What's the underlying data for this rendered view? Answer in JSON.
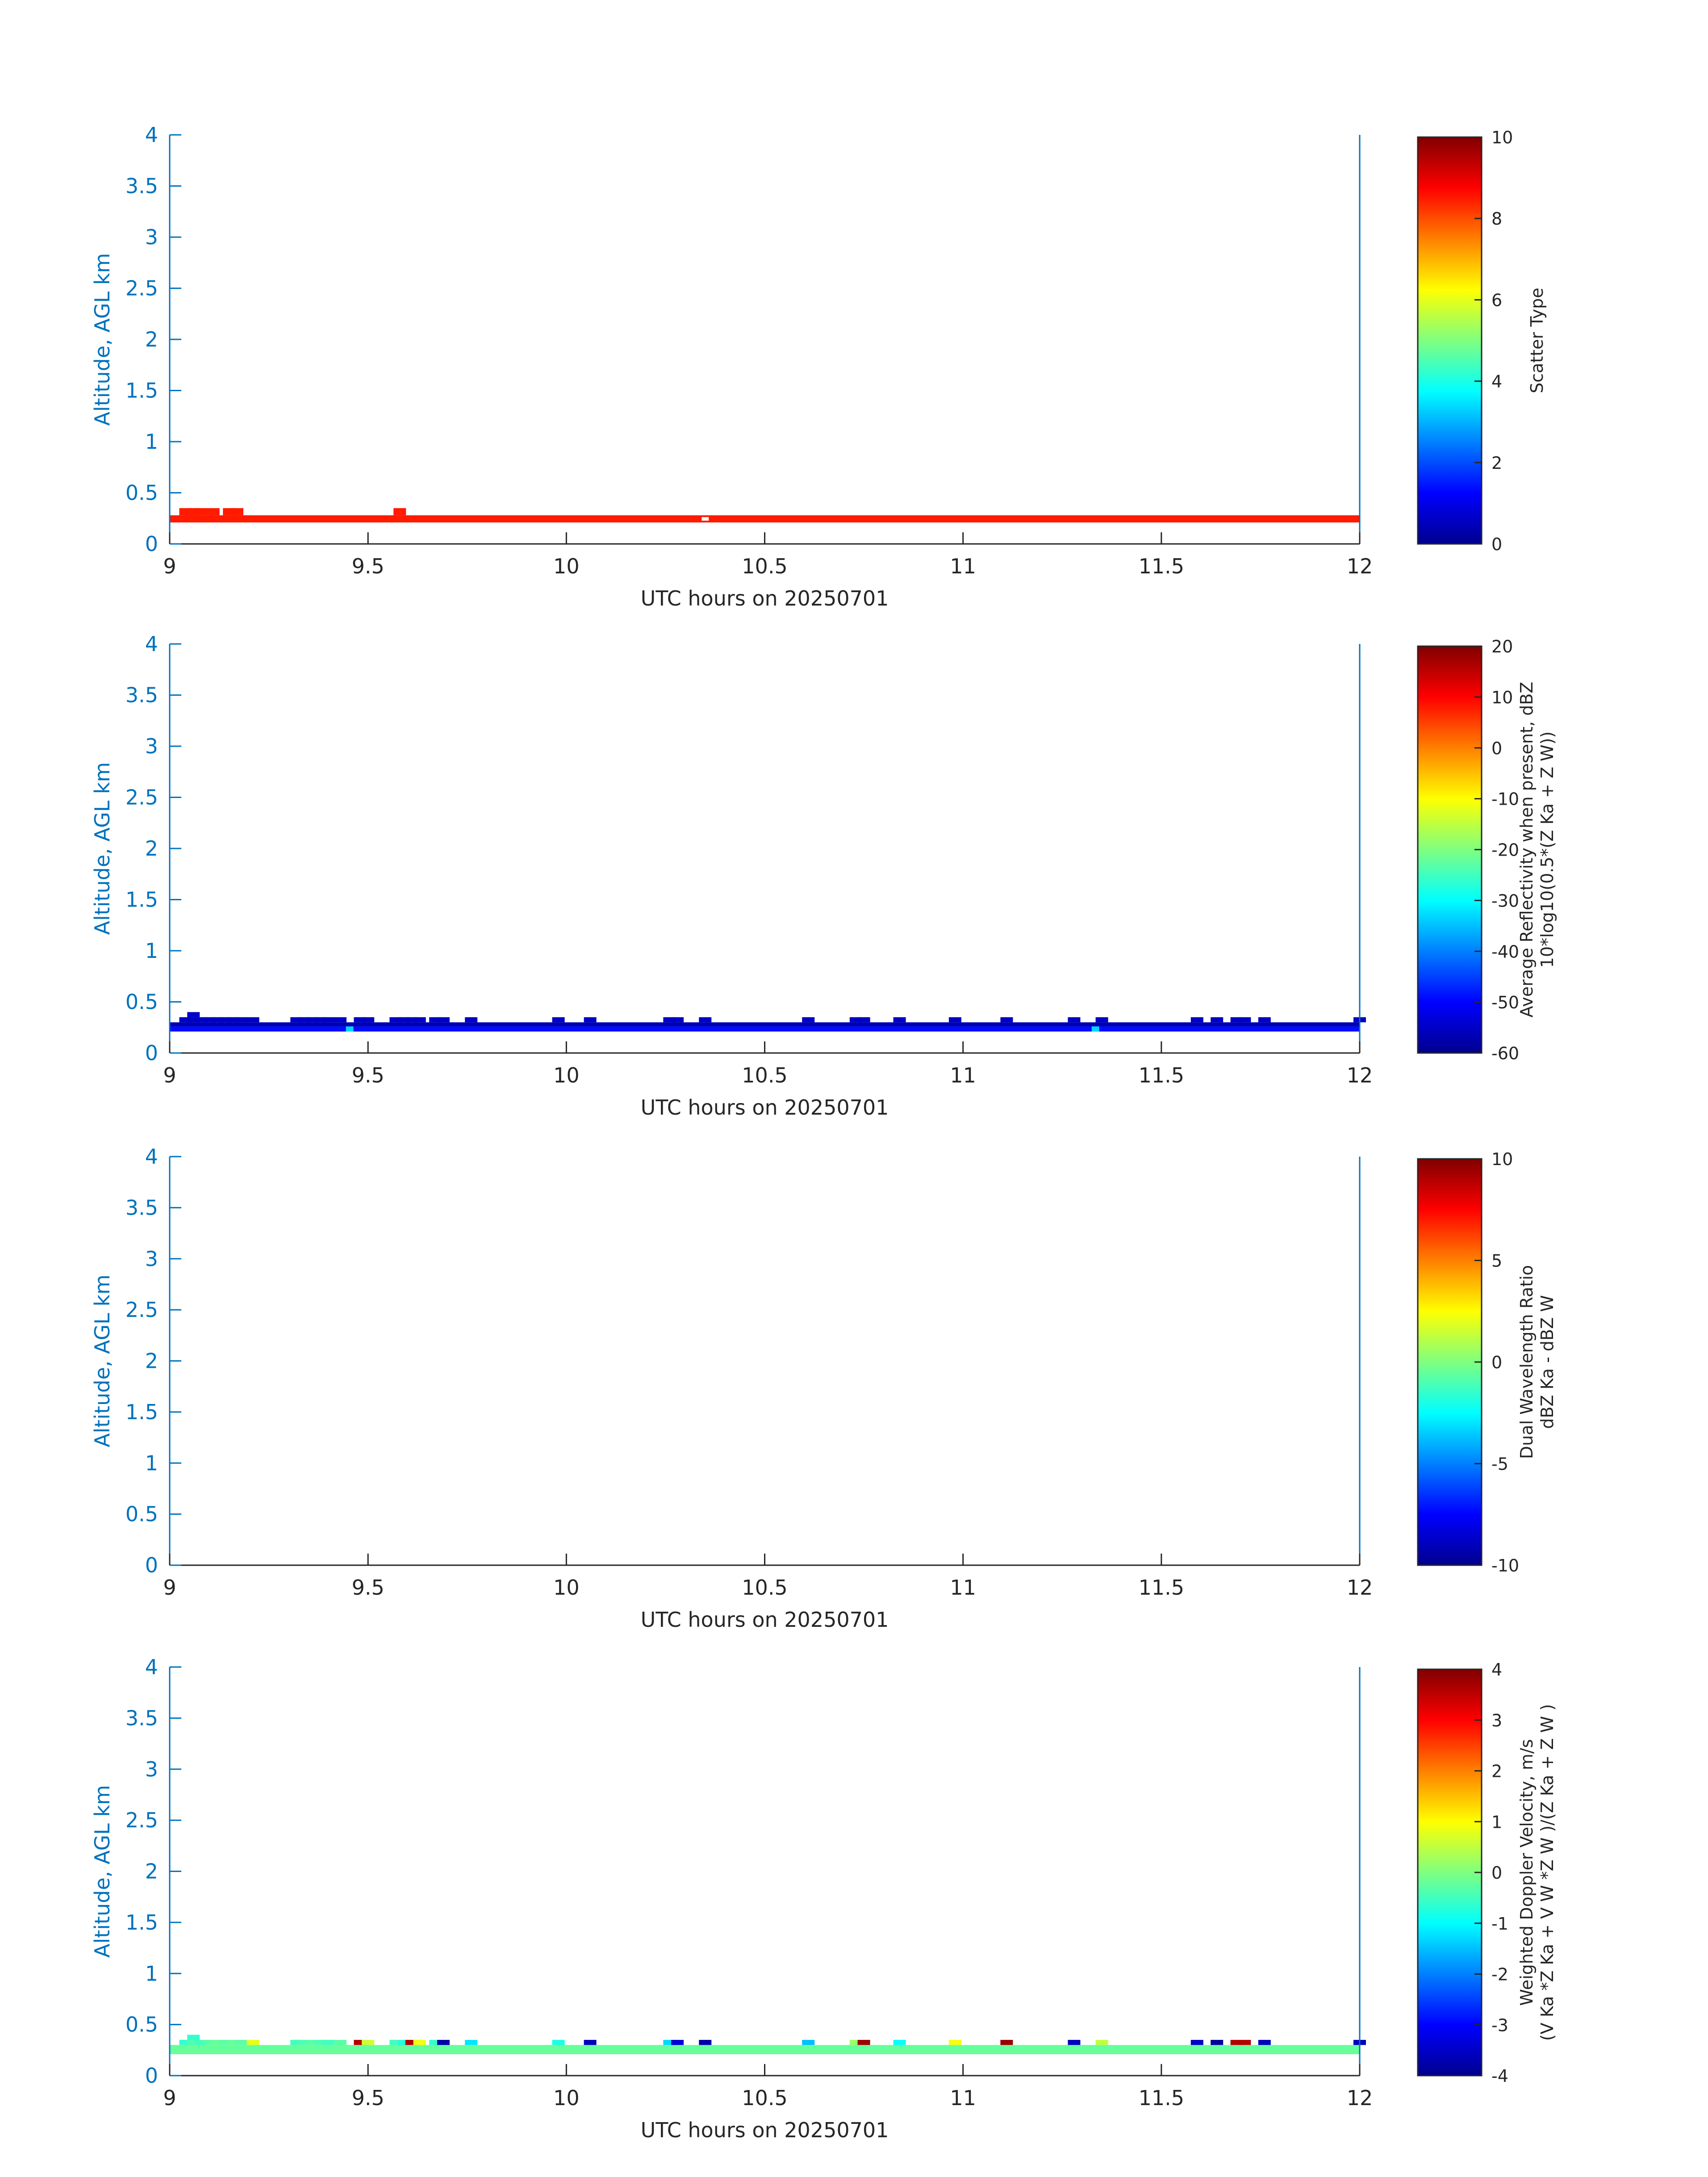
{
  "figure": {
    "time_axis": {
      "label": "UTC hours on 20250701",
      "range": [
        9,
        12
      ],
      "ticks": [
        "9",
        "9.5",
        "10",
        "10.5",
        "11",
        "11.5",
        "12"
      ]
    },
    "altitude_axis": {
      "label": "Altitude, AGL km",
      "range": [
        0,
        4
      ],
      "ticks": [
        "0",
        "0.5",
        "1",
        "1.5",
        "2",
        "2.5",
        "3",
        "3.5",
        "4"
      ]
    },
    "colors": {
      "axis": "#0072bd",
      "text": "#262626",
      "colormap": "jet"
    }
  },
  "chart_data": [
    {
      "type": "heatmap",
      "xlabel": "UTC hours on 20250701",
      "ylabel": "Altitude, AGL km",
      "xlim": [
        9,
        12
      ],
      "ylim": [
        0,
        4
      ],
      "colorbar": {
        "label_lines": [
          "Scatter Type"
        ],
        "range": [
          0,
          10
        ],
        "ticks": [
          "0",
          "2",
          "4",
          "6",
          "8",
          "10"
        ]
      },
      "layers": [
        {
          "y_range": [
            0.21,
            0.28
          ],
          "t_range": [
            9.0,
            12.0
          ],
          "value": 8.5,
          "gaps": [
            10.35
          ]
        },
        {
          "y_range": [
            0.28,
            0.35
          ],
          "times": [
            9.04,
            9.06,
            9.08,
            9.11,
            9.15,
            9.17,
            9.58
          ],
          "value": 8.5
        }
      ]
    },
    {
      "type": "heatmap",
      "xlabel": "UTC hours on 20250701",
      "ylabel": "Altitude, AGL km",
      "xlim": [
        9,
        12
      ],
      "ylim": [
        0,
        4
      ],
      "colorbar": {
        "label_lines": [
          "Average Reflectivity when present, dBZ",
          "10*log10(0.5*(Z Ka + Z W))"
        ],
        "range": [
          -60,
          20
        ],
        "ticks": [
          "-60",
          "-50",
          "-40",
          "-30",
          "-20",
          "-10",
          "0",
          "10",
          "20"
        ]
      },
      "layers": [
        {
          "y_range": [
            0.21,
            0.26
          ],
          "t_range": [
            9.0,
            12.0
          ],
          "value": -49,
          "highlights": [
            {
              "t": 9.46,
              "value": -33
            },
            {
              "t": 11.34,
              "value": -33
            }
          ]
        },
        {
          "y_range": [
            0.26,
            0.3
          ],
          "t_range": [
            9.0,
            12.0
          ],
          "value": -57
        },
        {
          "y_range": [
            0.3,
            0.35
          ],
          "times": [
            9.04,
            9.06,
            9.08,
            9.1,
            9.12,
            9.14,
            9.16,
            9.18,
            9.21,
            9.32,
            9.34,
            9.36,
            9.38,
            9.4,
            9.43,
            9.48,
            9.5,
            9.57,
            9.59,
            9.61,
            9.63,
            9.67,
            9.69,
            9.76,
            9.98,
            10.06,
            10.26,
            10.28,
            10.35,
            10.61,
            10.73,
            10.75,
            10.84,
            10.98,
            11.11,
            11.28,
            11.35,
            11.59,
            11.64,
            11.69,
            11.71,
            11.76,
            12.0
          ],
          "value": -55
        },
        {
          "y_range": [
            0.35,
            0.4
          ],
          "times": [
            9.06
          ],
          "value": -55
        }
      ]
    },
    {
      "type": "heatmap",
      "xlabel": "UTC hours on 20250701",
      "ylabel": "Altitude, AGL km",
      "xlim": [
        9,
        12
      ],
      "ylim": [
        0,
        4
      ],
      "colorbar": {
        "label_lines": [
          "Dual Wavelength Ratio",
          "dBZ Ka - dBZ W"
        ],
        "range": [
          -10,
          10
        ],
        "ticks": [
          "-10",
          "-5",
          "0",
          "5",
          "10"
        ]
      },
      "layers": []
    },
    {
      "type": "heatmap",
      "xlabel": "UTC hours on 20250701",
      "ylabel": "Altitude, AGL km",
      "xlim": [
        9,
        12
      ],
      "ylim": [
        0,
        4
      ],
      "colorbar": {
        "label_lines": [
          "Weighted Doppler Velocity, m/s",
          "(V Ka *Z Ka + V W *Z W )/(Z Ka + Z W )"
        ],
        "range": [
          -4,
          4
        ],
        "ticks": [
          "-4",
          "-3",
          "-2",
          "-1",
          "0",
          "1",
          "2",
          "3",
          "4"
        ]
      },
      "layers": [
        {
          "y_range": [
            0.21,
            0.3
          ],
          "t_range": [
            9.0,
            12.0
          ],
          "value": -0.2
        },
        {
          "y_range": [
            0.3,
            0.35
          ],
          "cells": [
            {
              "t": 9.04,
              "v": -0.6
            },
            {
              "t": 9.06,
              "v": -0.4
            },
            {
              "t": 9.08,
              "v": -0.5
            },
            {
              "t": 9.1,
              "v": -0.3
            },
            {
              "t": 9.12,
              "v": -0.2
            },
            {
              "t": 9.14,
              "v": -0.3
            },
            {
              "t": 9.16,
              "v": -0.2
            },
            {
              "t": 9.18,
              "v": -0.3
            },
            {
              "t": 9.21,
              "v": 0.8
            },
            {
              "t": 9.32,
              "v": -0.5
            },
            {
              "t": 9.34,
              "v": -0.4
            },
            {
              "t": 9.36,
              "v": -0.3
            },
            {
              "t": 9.38,
              "v": -0.4
            },
            {
              "t": 9.4,
              "v": -0.5
            },
            {
              "t": 9.43,
              "v": -0.3
            },
            {
              "t": 9.48,
              "v": 3.6
            },
            {
              "t": 9.5,
              "v": 0.6
            },
            {
              "t": 9.57,
              "v": -0.5
            },
            {
              "t": 9.59,
              "v": -0.7
            },
            {
              "t": 9.61,
              "v": 3.6
            },
            {
              "t": 9.63,
              "v": 0.9
            },
            {
              "t": 9.67,
              "v": -0.6
            },
            {
              "t": 9.69,
              "v": -3.8
            },
            {
              "t": 9.76,
              "v": -1.2
            },
            {
              "t": 9.98,
              "v": -0.8
            },
            {
              "t": 10.06,
              "v": -3.6
            },
            {
              "t": 10.26,
              "v": -1.3
            },
            {
              "t": 10.28,
              "v": -3.4
            },
            {
              "t": 10.35,
              "v": -3.8
            },
            {
              "t": 10.61,
              "v": -1.5
            },
            {
              "t": 10.73,
              "v": 0.2
            },
            {
              "t": 10.75,
              "v": 3.8
            },
            {
              "t": 10.84,
              "v": -1.0
            },
            {
              "t": 10.98,
              "v": 0.9
            },
            {
              "t": 11.11,
              "v": 3.8
            },
            {
              "t": 11.28,
              "v": -3.6
            },
            {
              "t": 11.35,
              "v": 0.5
            },
            {
              "t": 11.59,
              "v": -3.5
            },
            {
              "t": 11.64,
              "v": -3.9
            },
            {
              "t": 11.69,
              "v": 3.6
            },
            {
              "t": 11.71,
              "v": 3.6
            },
            {
              "t": 11.76,
              "v": -3.6
            },
            {
              "t": 12.0,
              "v": -3.6
            }
          ]
        },
        {
          "y_range": [
            0.35,
            0.4
          ],
          "times": [
            9.06
          ],
          "value": -0.6
        }
      ]
    }
  ]
}
